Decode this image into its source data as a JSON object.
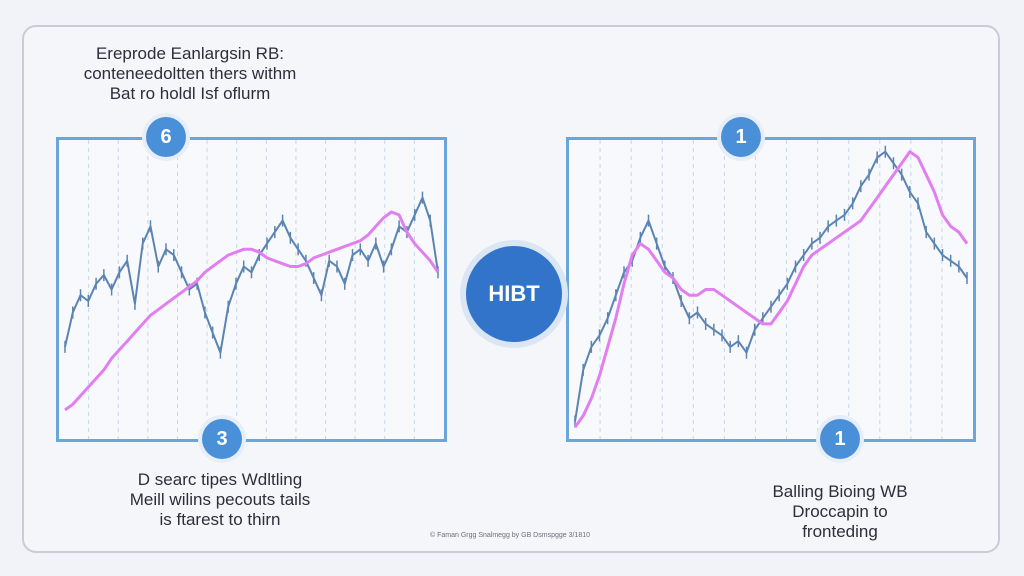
{
  "captions": {
    "top_left": [
      "Ereprode Eanlargsin RB:",
      "conteneedoltten thers withm",
      "Bat ro holdl Isf oflurm"
    ],
    "bottom_left": [
      "D searc tipes Wdltling",
      "Meill wilins pecouts tails",
      "is ftarest to thirn"
    ],
    "bottom_right": [
      "Balling Bioing WB",
      "Droccapin to",
      "fronteding"
    ]
  },
  "footer": "© Faman Grgg Snalmegg by GB Dsmspgge 3/1810",
  "center_badge": "HIBT",
  "badges": {
    "top_left": "6",
    "bottom_left": "3",
    "top_right": "1",
    "bottom_right": "1"
  },
  "colors": {
    "price": "#5c84b0",
    "trend": "#e27ff0",
    "panel_border": "#6aa6dc",
    "badge": "#4a90d9",
    "center": "#3274c9"
  },
  "chart_data": [
    {
      "type": "line",
      "x": [
        0,
        1,
        2,
        3,
        4,
        5,
        6,
        7,
        8,
        9,
        10,
        11,
        12,
        13,
        14,
        15,
        16,
        17,
        18,
        19,
        20,
        21,
        22,
        23,
        24,
        25,
        26,
        27,
        28,
        29,
        30,
        31,
        32,
        33,
        34,
        35,
        36,
        37,
        38,
        39,
        40,
        41,
        42,
        43,
        44,
        45,
        46,
        47,
        48
      ],
      "series": [
        {
          "values": [
            30,
            42,
            48,
            46,
            52,
            55,
            50,
            56,
            60,
            45,
            66,
            72,
            58,
            64,
            62,
            56,
            50,
            52,
            42,
            35,
            28,
            44,
            52,
            58,
            56,
            62,
            66,
            70,
            74,
            68,
            64,
            60,
            54,
            48,
            60,
            58,
            52,
            62,
            64,
            60,
            66,
            58,
            64,
            72,
            70,
            76,
            82,
            74,
            56
          ]
        },
        {
          "values": [
            8,
            10,
            13,
            16,
            19,
            22,
            26,
            29,
            32,
            35,
            38,
            41,
            43,
            45,
            47,
            49,
            51,
            53,
            56,
            58,
            60,
            62,
            63,
            64,
            64,
            63,
            61,
            60,
            59,
            58,
            58,
            59,
            61,
            62,
            63,
            64,
            65,
            66,
            67,
            69,
            72,
            75,
            77,
            76,
            70,
            66,
            63,
            60,
            56
          ]
        }
      ],
      "ylim": [
        0,
        100
      ]
    },
    {
      "type": "line",
      "x": [
        0,
        1,
        2,
        3,
        4,
        5,
        6,
        7,
        8,
        9,
        10,
        11,
        12,
        13,
        14,
        15,
        16,
        17,
        18,
        19,
        20,
        21,
        22,
        23,
        24,
        25,
        26,
        27,
        28,
        29,
        30,
        31,
        32,
        33,
        34,
        35,
        36,
        37,
        38,
        39,
        40,
        41,
        42,
        43,
        44,
        45,
        46,
        47,
        48
      ],
      "series": [
        {
          "values": [
            4,
            22,
            30,
            34,
            40,
            48,
            56,
            60,
            68,
            74,
            66,
            58,
            54,
            46,
            40,
            42,
            38,
            36,
            34,
            30,
            32,
            28,
            36,
            40,
            44,
            48,
            52,
            58,
            62,
            66,
            68,
            72,
            74,
            76,
            80,
            86,
            90,
            96,
            98,
            94,
            90,
            84,
            80,
            70,
            66,
            62,
            60,
            58,
            54
          ]
        },
        {
          "values": [
            2,
            6,
            12,
            20,
            30,
            40,
            52,
            62,
            66,
            64,
            60,
            56,
            54,
            50,
            48,
            48,
            50,
            50,
            48,
            46,
            44,
            42,
            40,
            38,
            38,
            42,
            46,
            52,
            58,
            62,
            64,
            66,
            68,
            70,
            72,
            74,
            78,
            82,
            86,
            90,
            94,
            98,
            96,
            90,
            84,
            76,
            72,
            70,
            66
          ]
        }
      ],
      "ylim": [
        0,
        100
      ]
    }
  ]
}
